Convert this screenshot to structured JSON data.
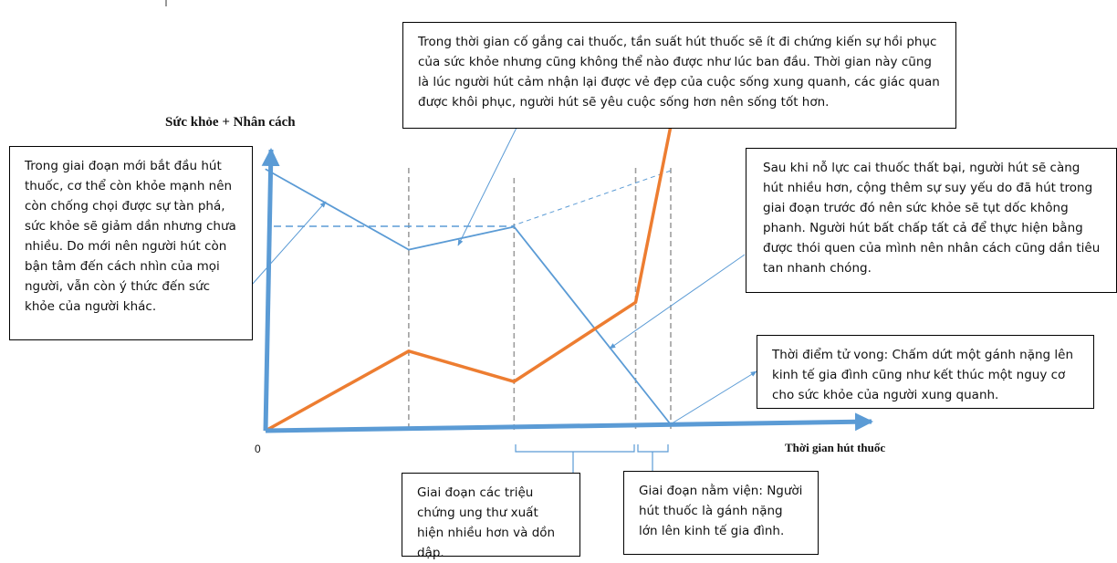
{
  "chart_data": {
    "type": "line",
    "ylabel": "Sức khỏe + Nhân cách",
    "xlabel": "Thời gian hút thuốc",
    "origin_label": "0",
    "series": [
      {
        "role": "health",
        "color": "#5b9bd5",
        "points": [
          [
            0,
            9.8
          ],
          [
            5.3,
            6.7
          ],
          [
            9.2,
            7.5
          ],
          [
            15,
            0
          ]
        ]
      },
      {
        "role": "personality",
        "color": "#ed7d31",
        "points": [
          [
            0,
            0
          ],
          [
            5.3,
            2.9
          ],
          [
            9.2,
            1.7
          ],
          [
            13.7,
            4.6
          ],
          [
            15.1,
            11.7
          ]
        ]
      }
    ],
    "vertical_markers_x": [
      5.3,
      9.2,
      13.7,
      15
    ],
    "reference_level_y": 7.5
  },
  "callouts": {
    "start": "Trong giai đoạn mới bắt đầu hút thuốc, cơ thể còn khỏe mạnh nên còn chống chọi được sự tàn phá, sức khỏe sẽ giảm dần nhưng chưa nhiều. Do mới nên người hút còn bận tâm đến cách nhìn của mọi người, vẫn còn ý thức đến sức khỏe của người khác.",
    "quit_attempt": "Trong thời gian cố gắng cai thuốc, tần suất hút thuốc sẽ ít đi chứng kiến sự hồi phục của sức khỏe nhưng cũng không thể nào được như lúc ban đầu. Thời gian này cũng là lúc người hút cảm nhận lại được vẻ đẹp của cuộc sống xung quanh, các giác quan được khôi phục, người hút sẽ yêu cuộc sống hơn nên sống tốt hơn.",
    "quit_failed": "Sau khi nỗ lực cai thuốc thất bại, người hút sẽ càng hút nhiều hơn, cộng thêm sự suy yếu do đã hút trong giai đoạn trước đó nên sức khỏe sẽ tụt dốc không phanh. Người hút bất chấp tất cả để thực hiện bằng được thói quen của mình nên nhân cách cũng dần tiêu tan nhanh chóng.",
    "death": "Thời điểm tử vong: Chấm dứt một gánh nặng lên kinh tế gia đình cũng như kết thúc một nguy cơ cho sức khỏe của người xung quanh.",
    "symptoms": "Giai đoạn các triệu chứng ung thư xuất hiện nhiều hơn và dồn dập.",
    "hospital": "Giai đoạn nằm viện: Người hút thuốc là gánh nặng lớn lên kinh tế gia đình."
  }
}
